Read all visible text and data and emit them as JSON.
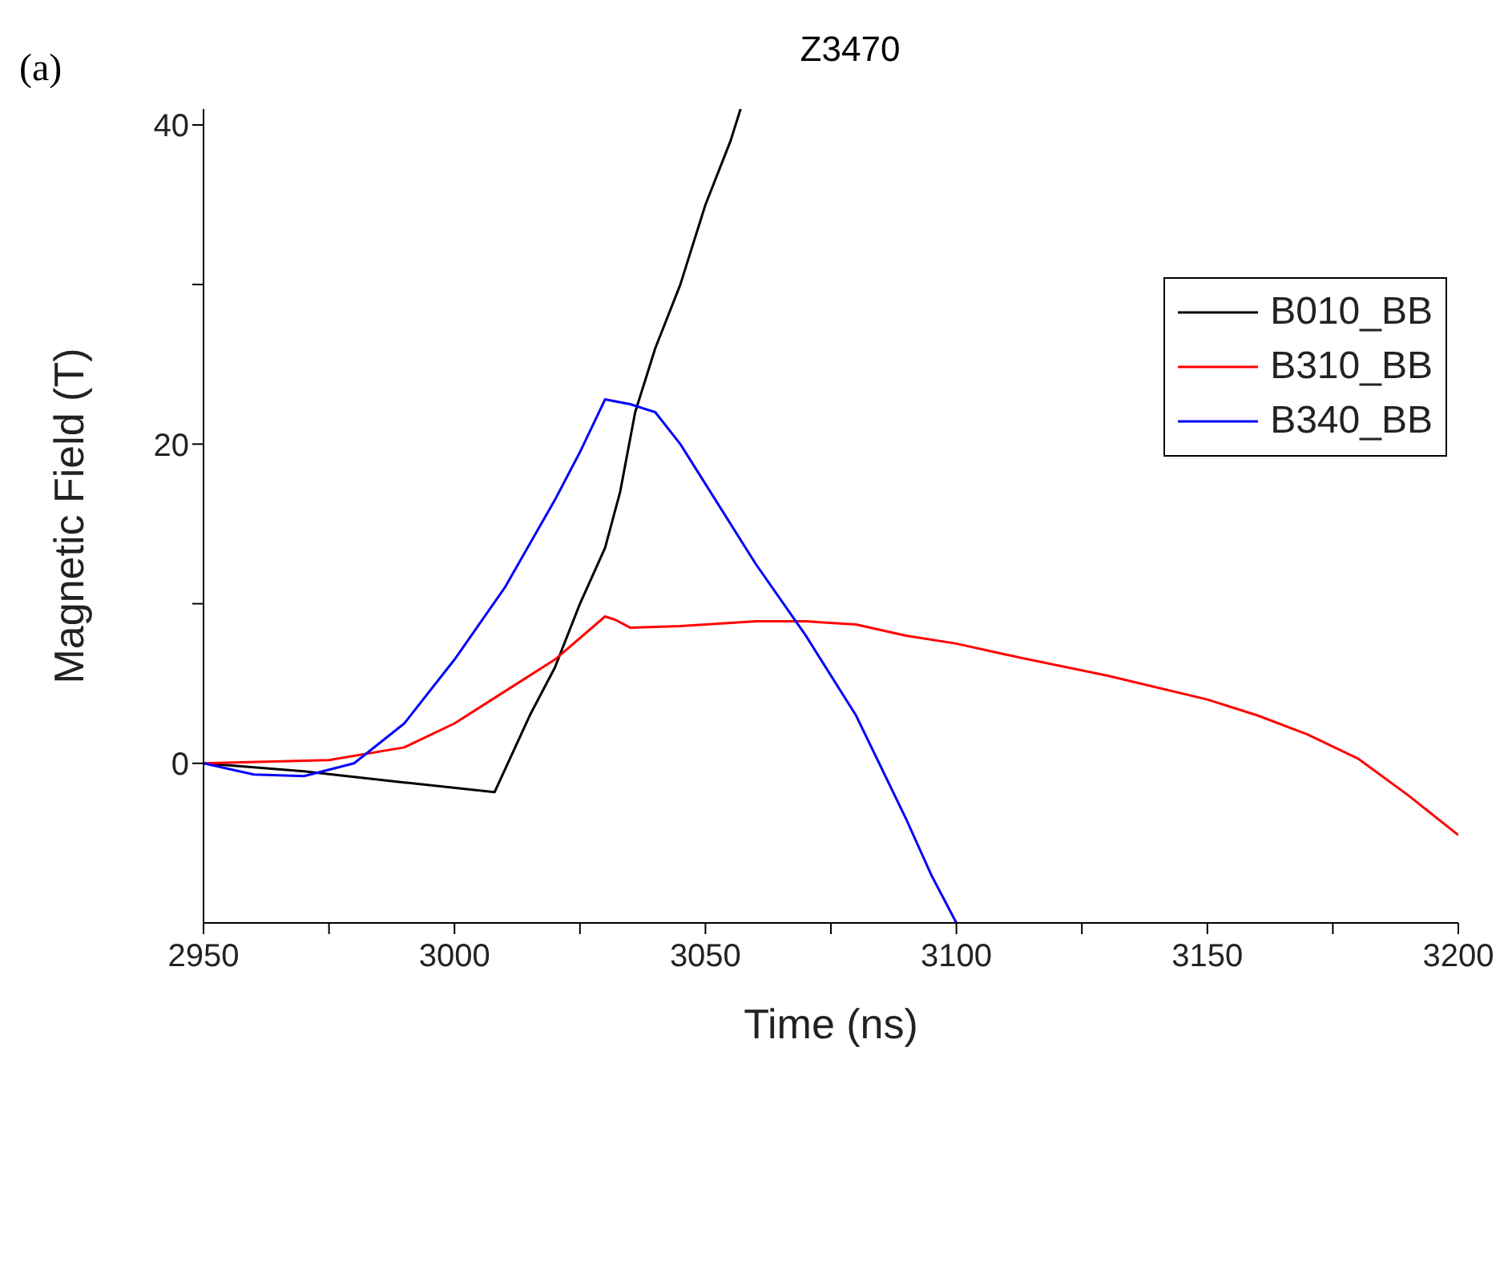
{
  "chart_data": {
    "type": "line",
    "title": "Z3470",
    "xlabel": "Time (ns)",
    "ylabel": "Magnetic Field (T)",
    "annotations": [
      "(a)"
    ],
    "xlim": [
      2950,
      3200
    ],
    "xticks": [
      2950,
      {
        "value": 2975,
        "label": null
      },
      3000,
      {
        "value": 3025,
        "label": null
      },
      3050,
      {
        "value": 3075,
        "label": null
      },
      3100,
      {
        "value": 3125,
        "label": null
      },
      3150,
      {
        "value": 3175,
        "label": null
      },
      3200
    ],
    "ylim": [
      -10,
      41
    ],
    "yticks": [
      0,
      {
        "value": 10,
        "label": null
      },
      20,
      {
        "value": 30,
        "label": null
      },
      40
    ],
    "grid": false,
    "legend": "top right",
    "marker": "none",
    "line_style": "solid",
    "series": [
      {
        "name": "B010_BB",
        "color": "#000000",
        "x": [
          2950,
          2970,
          2990,
          3008,
          3015,
          3020,
          3025,
          3030,
          3033,
          3036,
          3040,
          3045,
          3050,
          3055,
          3057
        ],
        "values": [
          0,
          -0.5,
          -1.2,
          -1.8,
          3,
          6,
          10,
          13.5,
          17,
          22,
          26,
          30,
          35,
          39,
          41
        ]
      },
      {
        "name": "B310_BB",
        "color": "#ff0000",
        "x": [
          2950,
          2975,
          2990,
          3000,
          3010,
          3020,
          3030,
          3032,
          3035,
          3045,
          3060,
          3070,
          3080,
          3090,
          3100,
          3110,
          3130,
          3150,
          3160,
          3170,
          3180,
          3190,
          3200
        ],
        "values": [
          0,
          0.2,
          1,
          2.5,
          4.5,
          6.5,
          9.2,
          9,
          8.5,
          8.6,
          8.9,
          8.9,
          8.7,
          8,
          7.5,
          6.8,
          5.5,
          4,
          3,
          1.8,
          0.3,
          -2,
          -4.5
        ]
      },
      {
        "name": "B340_BB",
        "color": "#0000ff",
        "x": [
          2950,
          2960,
          2970,
          2980,
          2990,
          3000,
          3010,
          3020,
          3025,
          3030,
          3035,
          3040,
          3045,
          3050,
          3060,
          3070,
          3080,
          3090,
          3095,
          3100
        ],
        "values": [
          0,
          -0.7,
          -0.8,
          0,
          2.5,
          6.5,
          11,
          16.5,
          19.5,
          22.8,
          22.5,
          22,
          20,
          17.5,
          12.5,
          8,
          3,
          -3.5,
          -7,
          -10
        ]
      }
    ]
  }
}
